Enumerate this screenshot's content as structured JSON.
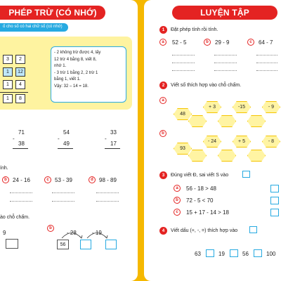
{
  "left": {
    "title": "PHÉP TRỪ (CÓ NHỚ)",
    "subtitle": "ố cho số có hai chữ số (có nhớ)",
    "example": {
      "cells": [
        "3",
        "2",
        "1",
        "12",
        "1",
        "4",
        "1",
        "8"
      ],
      "explanation": [
        "- 2 không trừ được 4, lấy",
        "12 trừ 4 bằng 8, viết 8,",
        "nhớ 1.",
        "- 3 trừ 1 bằng 2, 2 trừ 1",
        "bằng 1, viết 1.",
        "Vậy: 32 – 14 = 18."
      ]
    },
    "vertical": [
      {
        "top": "71",
        "minus": "-",
        "bottom": "38"
      },
      {
        "top": "54",
        "minus": "-",
        "bottom": "49"
      },
      {
        "top": "33",
        "minus": "-",
        "bottom": "17"
      }
    ],
    "section2_label": "ính.",
    "section2": [
      {
        "letter": "b",
        "expr": "24 - 16"
      },
      {
        "letter": "c",
        "expr": "53 - 39"
      },
      {
        "letter": "d",
        "expr": "98 - 89"
      }
    ],
    "section3_label": "ào chỗ chấm.",
    "chain_left": {
      "value": "9"
    },
    "chain_right": {
      "letter": "b",
      "op1": "- 28",
      "op2": "- 19",
      "start": "56"
    }
  },
  "right": {
    "title": "LUYỆN TẬP",
    "q1": {
      "number": "1",
      "instruction": "Đặt phép tính rồi tính.",
      "items": [
        {
          "letter": "a",
          "expr": "52 - 5"
        },
        {
          "letter": "b",
          "expr": "29 - 9"
        },
        {
          "letter": "c",
          "expr": "64 - 7"
        }
      ]
    },
    "q2": {
      "number": "2",
      "instruction": "Viết số thích hợp vào chỗ chấm.",
      "row_a": {
        "letter": "a",
        "start": "48",
        "ops": [
          "+ 3",
          "-15",
          "- 9"
        ]
      },
      "row_b": {
        "letter": "b",
        "start": "93",
        "ops": [
          "- 24",
          "+ 5",
          "- 8"
        ]
      }
    },
    "q3": {
      "number": "3",
      "instruction": "Đúng viết Đ, sai viết S vào",
      "items": [
        {
          "letter": "a",
          "expr": "56 - 18 > 48"
        },
        {
          "letter": "b",
          "expr": "72 - 5 < 70"
        },
        {
          "letter": "c",
          "expr": "15 + 17 - 14 > 18"
        }
      ]
    },
    "q4": {
      "number": "4",
      "instruction": "Viết dấu (+, -, =) thích hợp vào",
      "values": [
        "63",
        "19",
        "56",
        "100"
      ]
    }
  }
}
